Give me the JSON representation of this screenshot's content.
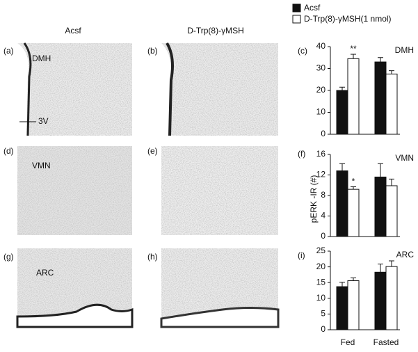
{
  "figure": {
    "column_headers": [
      "Acsf",
      "D-Trp(8)-γMSH"
    ],
    "panel_labels": [
      "(a)",
      "(b)",
      "(c)",
      "(d)",
      "(e)",
      "(f)",
      "(g)",
      "(h)",
      "(i)"
    ],
    "image_labels": [
      "DMH",
      "3V",
      "VMN",
      "ARC"
    ]
  },
  "chart_data": [
    {
      "type": "bar",
      "title": "DMH",
      "categories": [
        null,
        null
      ],
      "series": [
        {
          "name": "Acsf",
          "color": "#111111",
          "values": [
            20,
            33
          ],
          "errors": [
            1.5,
            2
          ]
        },
        {
          "name": "D-Trp(8)-γMSH(1 nmol)",
          "color": "#ffffff",
          "values": [
            34.5,
            27.5
          ],
          "errors": [
            2,
            1.5
          ]
        }
      ],
      "annotations": [
        "**"
      ],
      "ylim": [
        0,
        40
      ],
      "yticks": [
        0,
        10,
        20,
        30,
        40
      ]
    },
    {
      "type": "bar",
      "title": "VMN",
      "y_label": "pERK -IR (#)",
      "categories": [
        null,
        null
      ],
      "series": [
        {
          "color": "#111111",
          "values": [
            12.8,
            11.6
          ],
          "errors": [
            1.4,
            2.6
          ]
        },
        {
          "color": "#ffffff",
          "values": [
            9.2,
            9.9
          ],
          "errors": [
            0.5,
            1.3
          ]
        }
      ],
      "annotations": [
        "*"
      ],
      "ylim": [
        0,
        16
      ],
      "yticks": [
        0,
        4,
        8,
        12,
        16
      ]
    },
    {
      "type": "bar",
      "title": "ARC",
      "categories": [
        "Fed",
        "Fasted"
      ],
      "series": [
        {
          "color": "#111111",
          "values": [
            13.7,
            18.3
          ],
          "errors": [
            1.4,
            2.6
          ]
        },
        {
          "color": "#ffffff",
          "values": [
            15.6,
            20.1
          ],
          "errors": [
            0.9,
            1.8
          ]
        }
      ],
      "ylim": [
        0,
        25
      ],
      "yticks": [
        0,
        5,
        10,
        15,
        20,
        25
      ]
    }
  ]
}
